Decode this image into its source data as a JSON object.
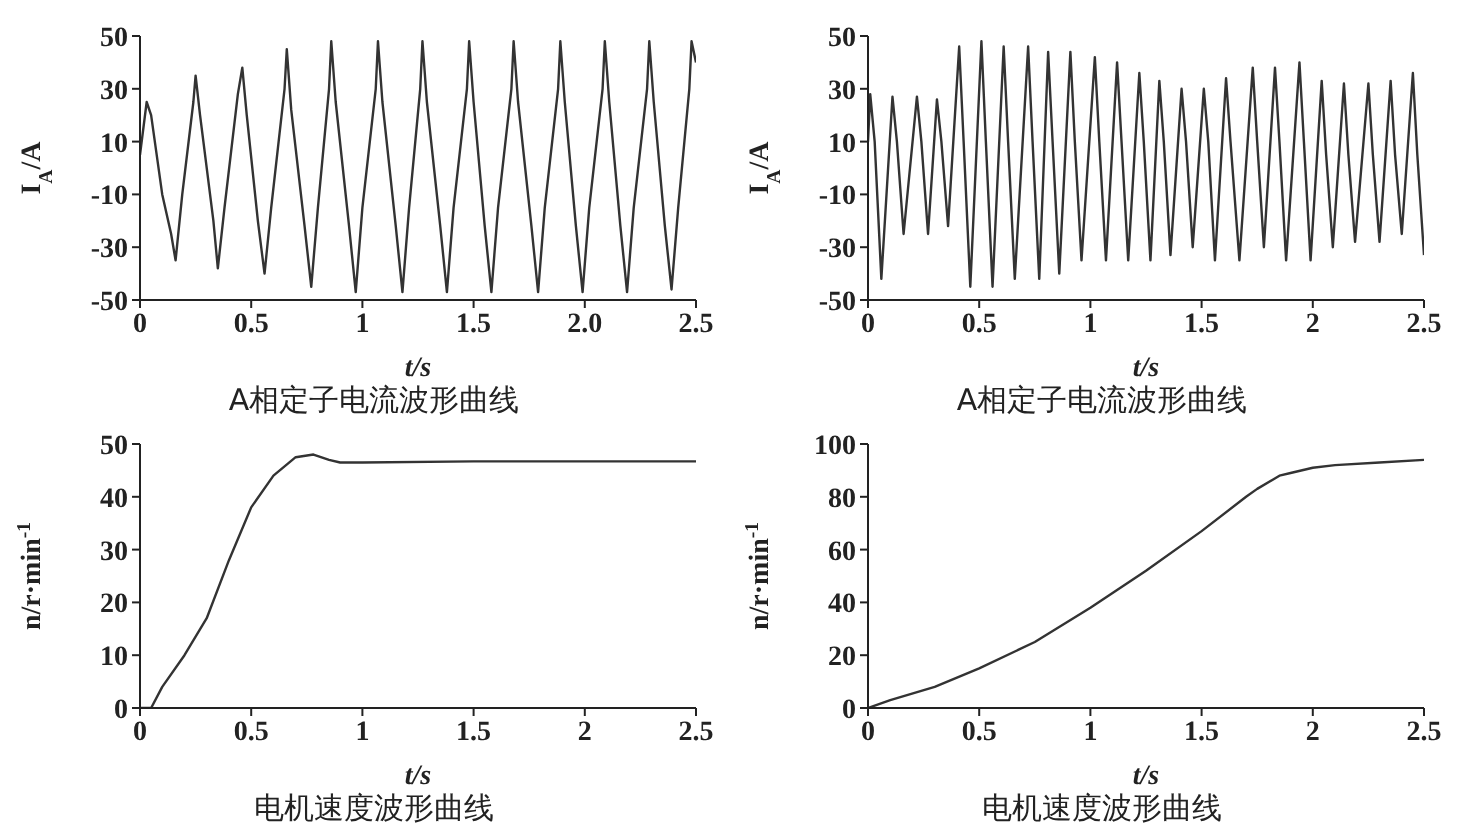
{
  "chart_data": [
    {
      "type": "line",
      "title": "A相定子电流波形曲线",
      "xlabel": "t/s",
      "ylabel": "I$_{A}$/A",
      "xlim": [
        0,
        2.5
      ],
      "xticks": [
        0,
        0.5,
        1,
        1.5,
        {
          "value": 2,
          "label": "2.0"
        },
        2.5
      ],
      "ylim": [
        -50,
        50
      ],
      "yticks": [
        -50,
        -30,
        -10,
        10,
        30,
        50
      ],
      "series": [
        {
          "color": "#333333",
          "x": [
            0,
            0.03,
            0.05,
            0.1,
            0.14,
            0.16,
            0.19,
            0.24,
            0.25,
            0.27,
            0.33,
            0.35,
            0.38,
            0.44,
            0.46,
            0.48,
            0.53,
            0.56,
            0.59,
            0.65,
            0.66,
            0.68,
            0.74,
            0.77,
            0.8,
            0.85,
            0.86,
            0.88,
            0.94,
            0.97,
            1.0,
            1.06,
            1.07,
            1.09,
            1.15,
            1.18,
            1.21,
            1.26,
            1.27,
            1.29,
            1.35,
            1.38,
            1.41,
            1.47,
            1.48,
            1.5,
            1.55,
            1.58,
            1.61,
            1.67,
            1.68,
            1.7,
            1.76,
            1.79,
            1.82,
            1.88,
            1.89,
            1.91,
            1.96,
            1.99,
            2.02,
            2.08,
            2.09,
            2.11,
            2.16,
            2.19,
            2.22,
            2.28,
            2.29,
            2.31,
            2.36,
            2.39,
            2.42,
            2.47,
            2.48,
            2.5
          ],
          "values": [
            5,
            25,
            20,
            -10,
            -25,
            -35,
            -10,
            25,
            35,
            20,
            -20,
            -38,
            -15,
            28,
            38,
            20,
            -20,
            -40,
            -15,
            30,
            45,
            22,
            -22,
            -45,
            -15,
            30,
            48,
            25,
            -22,
            -47,
            -15,
            30,
            48,
            25,
            -22,
            -47,
            -15,
            30,
            48,
            25,
            -22,
            -47,
            -15,
            30,
            48,
            25,
            -22,
            -47,
            -15,
            30,
            48,
            25,
            -22,
            -47,
            -15,
            30,
            48,
            25,
            -22,
            -47,
            -15,
            30,
            48,
            25,
            -22,
            -47,
            -15,
            30,
            48,
            25,
            -22,
            -46,
            -15,
            30,
            48,
            40
          ]
        }
      ]
    },
    {
      "type": "line",
      "title": "A相定子电流波形曲线",
      "xlabel": "t/s",
      "ylabel": "I$_{A}$/A",
      "xlim": [
        0,
        2.5
      ],
      "xticks": [
        0,
        0.5,
        1,
        1.5,
        2,
        2.5
      ],
      "ylim": [
        -50,
        50
      ],
      "yticks": [
        -50,
        -30,
        -10,
        10,
        30,
        50
      ],
      "series": [
        {
          "color": "#333333",
          "x": [
            0,
            0.01,
            0.03,
            0.06,
            0.11,
            0.13,
            0.16,
            0.22,
            0.24,
            0.27,
            0.31,
            0.33,
            0.36,
            0.41,
            0.43,
            0.46,
            0.51,
            0.53,
            0.56,
            0.61,
            0.63,
            0.66,
            0.72,
            0.74,
            0.77,
            0.81,
            0.83,
            0.86,
            0.91,
            0.93,
            0.96,
            1.02,
            1.04,
            1.07,
            1.12,
            1.14,
            1.17,
            1.22,
            1.24,
            1.27,
            1.31,
            1.33,
            1.36,
            1.41,
            1.43,
            1.46,
            1.51,
            1.53,
            1.56,
            1.61,
            1.63,
            1.67,
            1.73,
            1.75,
            1.78,
            1.83,
            1.85,
            1.88,
            1.94,
            1.96,
            1.99,
            2.04,
            2.06,
            2.09,
            2.14,
            2.16,
            2.19,
            2.25,
            2.27,
            2.3,
            2.35,
            2.37,
            2.4,
            2.45,
            2.47,
            2.5
          ],
          "values": [
            10,
            28,
            10,
            -42,
            27,
            10,
            -25,
            27,
            10,
            -25,
            26,
            10,
            -22,
            46,
            10,
            -45,
            48,
            10,
            -45,
            46,
            10,
            -42,
            46,
            10,
            -42,
            44,
            10,
            -40,
            44,
            10,
            -35,
            42,
            10,
            -35,
            40,
            10,
            -35,
            36,
            10,
            -35,
            33,
            10,
            -33,
            30,
            10,
            -30,
            30,
            10,
            -35,
            34,
            10,
            -35,
            38,
            10,
            -30,
            38,
            10,
            -35,
            40,
            10,
            -35,
            33,
            5,
            -30,
            32,
            5,
            -28,
            32,
            5,
            -28,
            33,
            5,
            -25,
            36,
            5,
            -33
          ]
        }
      ]
    },
    {
      "type": "line",
      "title": "电机速度波形曲线",
      "xlabel": "t/s",
      "ylabel": "n/r·min$^{-1}$",
      "xlim": [
        0,
        2.5
      ],
      "xticks": [
        0,
        0.5,
        1,
        1.5,
        2,
        2.5
      ],
      "ylim": [
        0,
        50
      ],
      "yticks": [
        0,
        10,
        20,
        30,
        40,
        50
      ],
      "series": [
        {
          "color": "#333333",
          "x": [
            0,
            0.05,
            0.1,
            0.2,
            0.3,
            0.4,
            0.5,
            0.6,
            0.7,
            0.78,
            0.85,
            0.9,
            1.0,
            1.5,
            2.0,
            2.5
          ],
          "values": [
            0,
            0,
            4,
            10,
            17,
            28,
            38,
            44,
            47.5,
            48,
            47,
            46.5,
            46.5,
            46.7,
            46.7,
            46.7
          ]
        }
      ]
    },
    {
      "type": "line",
      "title": "电机速度波形曲线",
      "xlabel": "t/s",
      "ylabel": "n/r·min$^{-1}$",
      "xlim": [
        0,
        2.5
      ],
      "xticks": [
        0,
        0.5,
        1,
        1.5,
        2,
        2.5
      ],
      "ylim": [
        0,
        100
      ],
      "yticks": [
        0,
        20,
        40,
        60,
        80,
        100
      ],
      "series": [
        {
          "color": "#333333",
          "x": [
            0,
            0.1,
            0.3,
            0.5,
            0.75,
            1.0,
            1.25,
            1.5,
            1.7,
            1.75,
            1.85,
            1.9,
            2.0,
            2.1,
            2.3,
            2.5
          ],
          "values": [
            0,
            3,
            8,
            15,
            25,
            38,
            52,
            67,
            80,
            83,
            88,
            89,
            91,
            92,
            93,
            94
          ]
        }
      ]
    }
  ]
}
